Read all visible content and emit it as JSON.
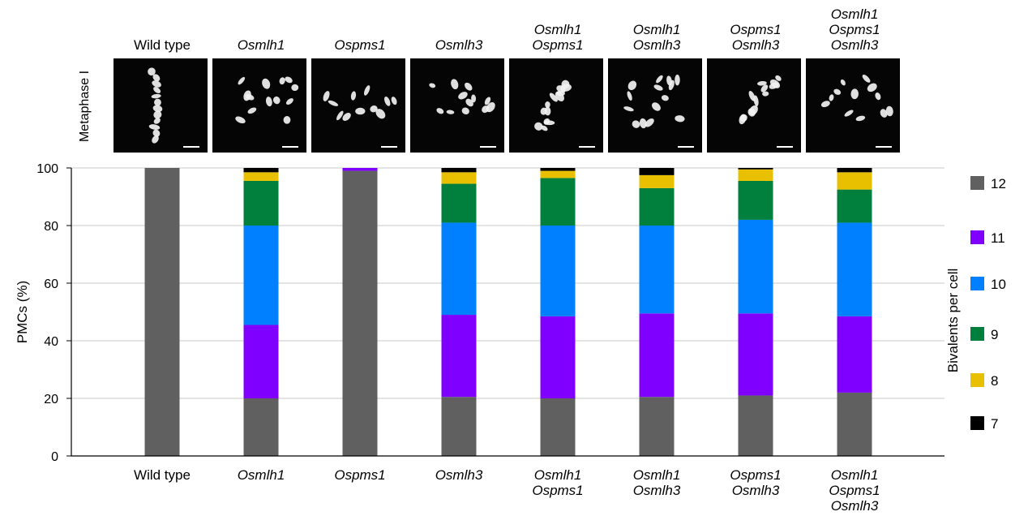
{
  "chart_data": {
    "type": "bar",
    "stacked": true,
    "panel_row_label": "Metaphase I",
    "categories": [
      [
        "Wild type"
      ],
      [
        "Osmlh1"
      ],
      [
        "Ospms1"
      ],
      [
        "Osmlh3"
      ],
      [
        "Osmlh1",
        "Ospms1"
      ],
      [
        "Osmlh1",
        "Osmlh3"
      ],
      [
        "Ospms1",
        "Osmlh3"
      ],
      [
        "Osmlh1",
        "Ospms1",
        "Osmlh3"
      ]
    ],
    "category_italic": [
      false,
      true,
      true,
      true,
      true,
      true,
      true,
      true
    ],
    "series": [
      {
        "name": "12",
        "color": "#606060",
        "values": [
          100,
          20,
          99,
          20.5,
          20,
          20.5,
          21,
          22
        ]
      },
      {
        "name": "11",
        "color": "#8000ff",
        "values": [
          0,
          25.5,
          1,
          28.5,
          28.5,
          29,
          28.5,
          26.5
        ]
      },
      {
        "name": "10",
        "color": "#0080ff",
        "values": [
          0,
          34.5,
          0,
          32,
          31.5,
          30.5,
          32.5,
          32.5
        ]
      },
      {
        "name": "9",
        "color": "#00803c",
        "values": [
          0,
          15.5,
          0,
          13.5,
          16.5,
          13,
          13.5,
          11.5
        ]
      },
      {
        "name": "8",
        "color": "#e8c000",
        "values": [
          0,
          3,
          0,
          4,
          2.5,
          4.5,
          4,
          6
        ]
      },
      {
        "name": "7",
        "color": "#000000",
        "values": [
          0,
          1.5,
          0,
          1.5,
          1,
          2.5,
          0.5,
          1.5
        ]
      }
    ],
    "legend_order": [
      "12",
      "11",
      "10",
      "9",
      "8",
      "7"
    ],
    "legend_title": "Bivalents per cell",
    "ylabel": "PMCs (%)",
    "xlabel": "",
    "ylim": [
      0,
      100
    ],
    "yticks": [
      0,
      20,
      40,
      60,
      80,
      100
    ],
    "grid": true,
    "legend_position": "right"
  }
}
